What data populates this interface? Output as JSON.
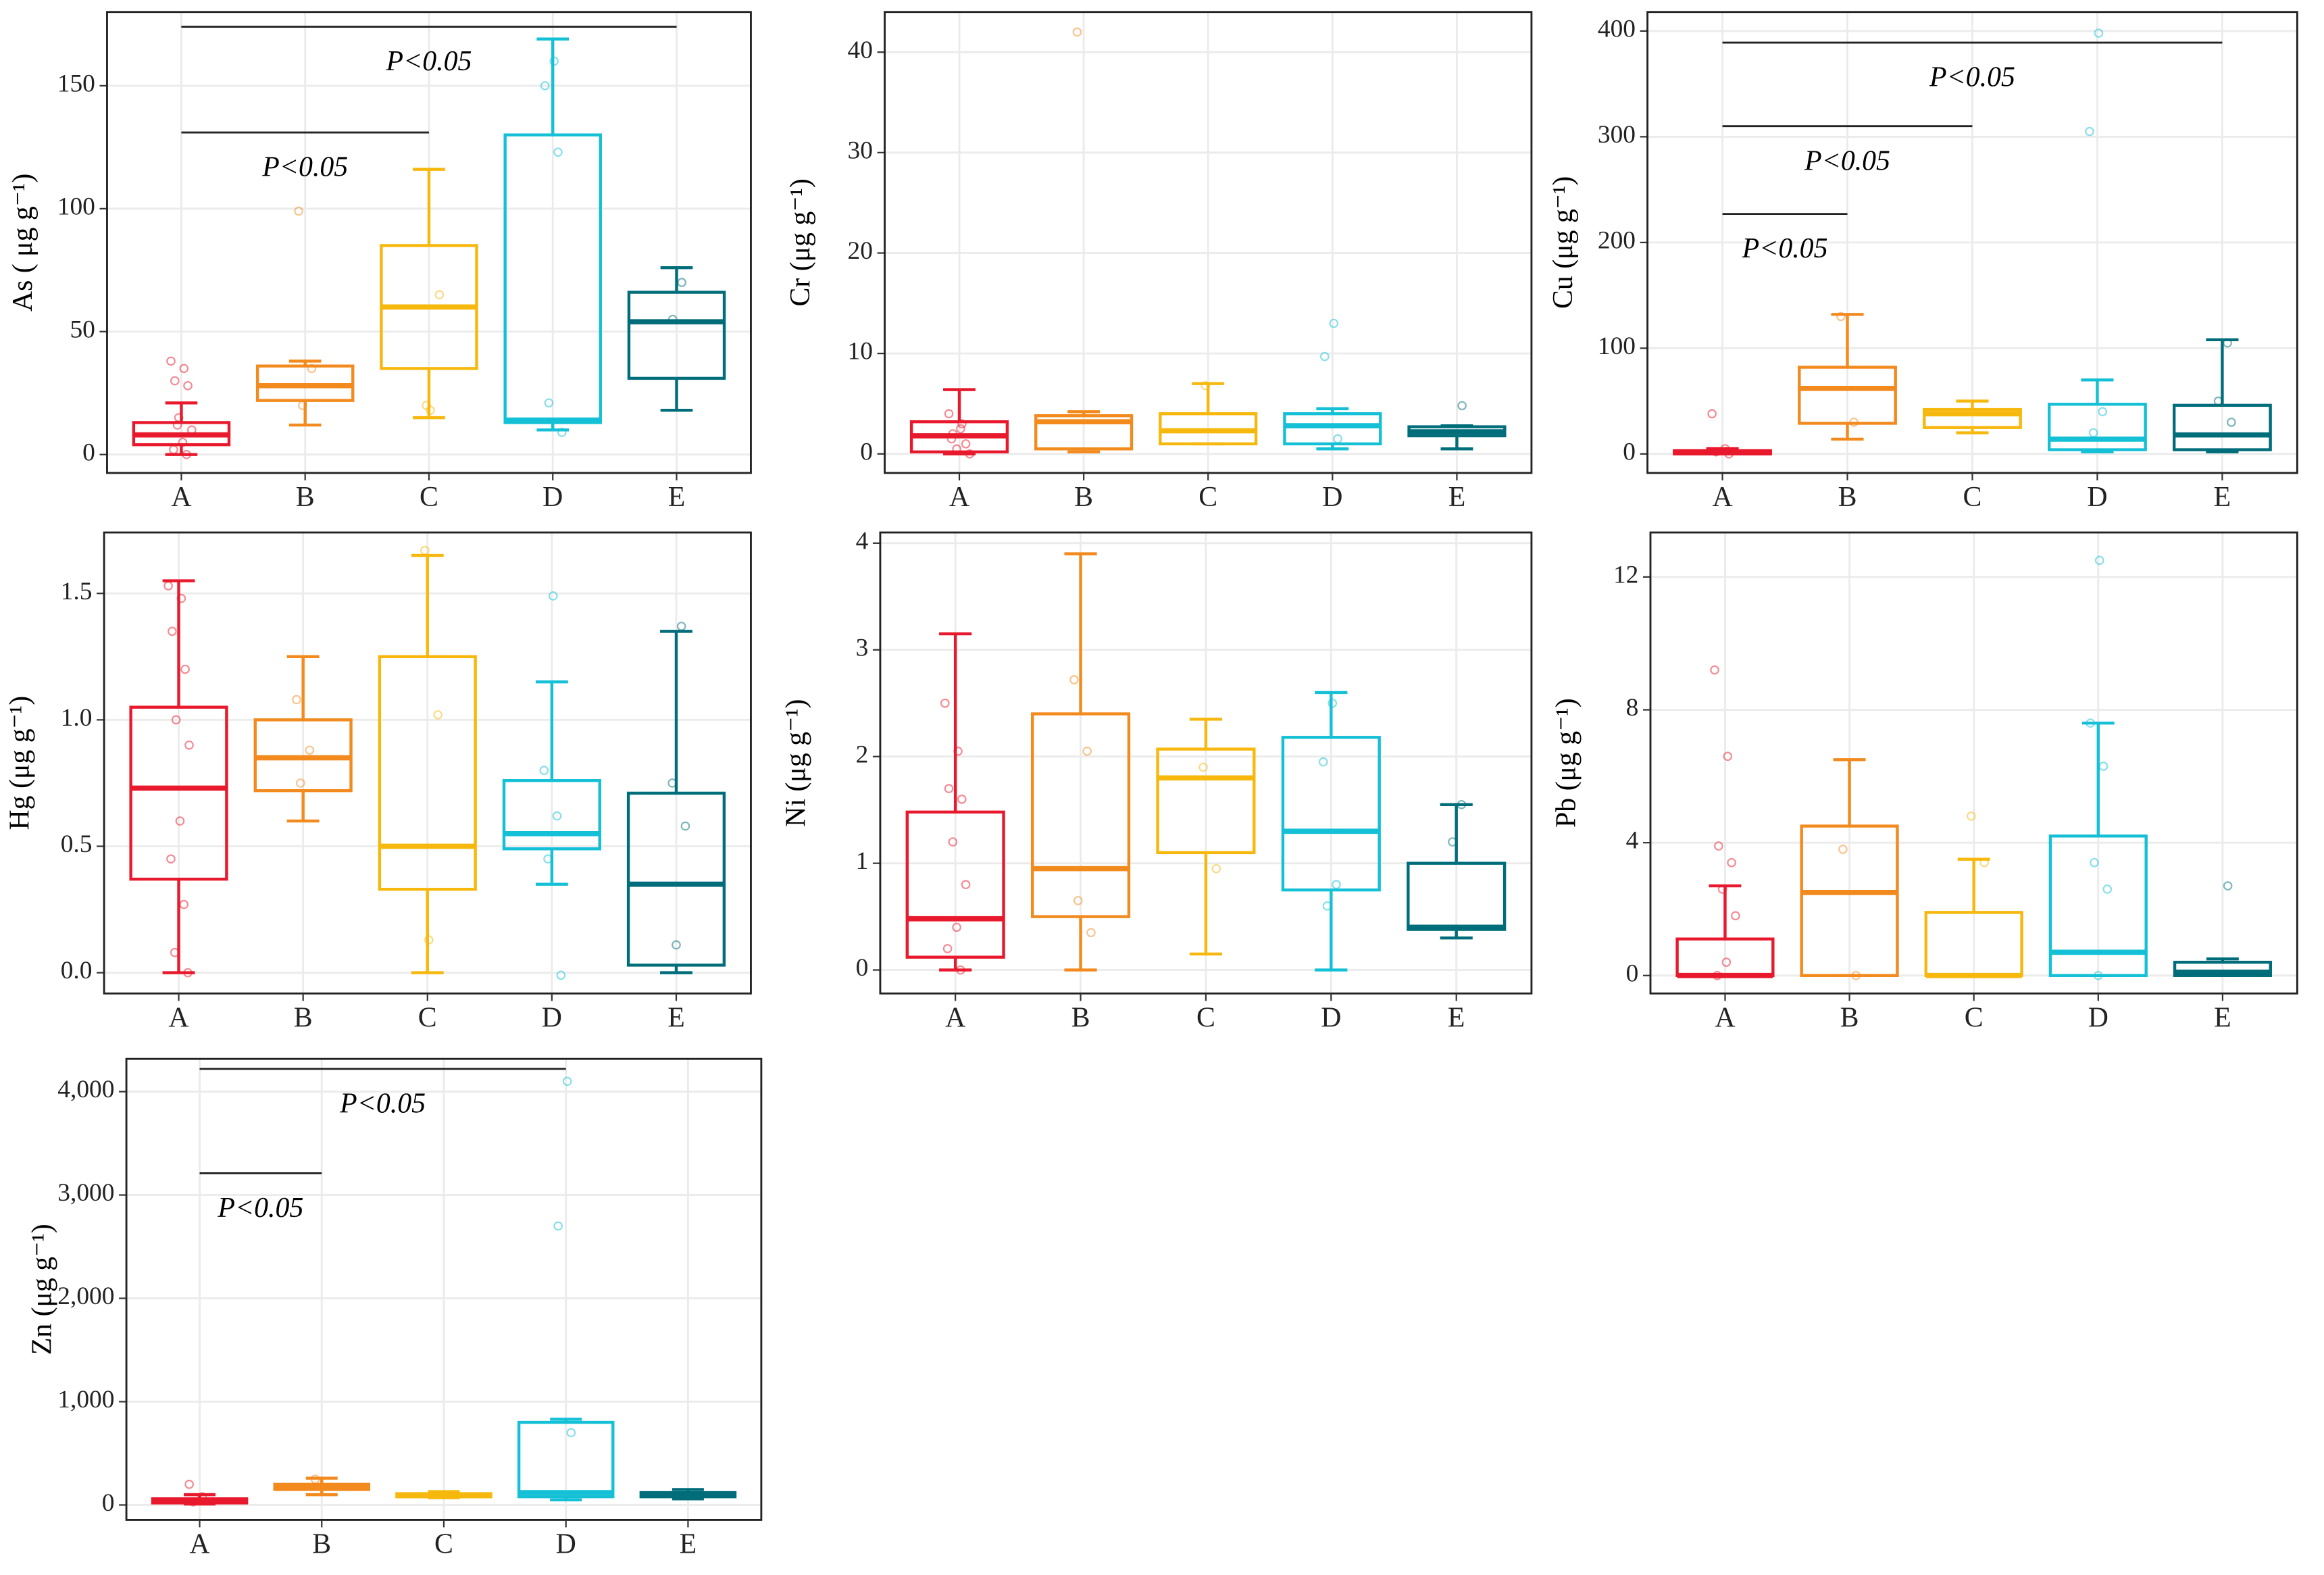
{
  "chart_data": [
    {
      "type": "box",
      "y_label": "As ( μg g⁻¹)",
      "categories": [
        "A",
        "B",
        "C",
        "D",
        "E"
      ],
      "colors": [
        "#e8192c",
        "#f28a1e",
        "#f7b80d",
        "#14c0d6",
        "#006d7a"
      ],
      "ylim": [
        -7.5,
        180
      ],
      "yticks": [
        0,
        50,
        100,
        150
      ],
      "grid": true,
      "boxes": [
        {
          "low": 0,
          "q1": 4,
          "median": 8,
          "q3": 13,
          "high": 21,
          "points": [
            38,
            35,
            30,
            28,
            15,
            10,
            5,
            2,
            0,
            12
          ]
        },
        {
          "low": 12,
          "q1": 22,
          "median": 28,
          "q3": 36,
          "high": 38,
          "points": [
            99,
            35,
            20
          ]
        },
        {
          "low": 15,
          "q1": 35,
          "median": 60,
          "q3": 85,
          "high": 116,
          "points": [
            20,
            65,
            18
          ]
        },
        {
          "low": 10,
          "q1": 13,
          "median": 14,
          "q3": 130,
          "high": 169,
          "points": [
            160,
            150,
            123,
            21,
            9
          ]
        },
        {
          "low": 18,
          "q1": 31,
          "median": 54,
          "q3": 66,
          "high": 76,
          "points": [
            70,
            55
          ]
        }
      ],
      "annotations": [
        {
          "label": "P<0.05",
          "from": "A",
          "to": "E",
          "y": 174
        },
        {
          "label": "P<0.05",
          "from": "A",
          "to": "C",
          "y": 131
        }
      ]
    },
    {
      "type": "box",
      "y_label": "Cr (μg g⁻¹)",
      "categories": [
        "A",
        "B",
        "C",
        "D",
        "E"
      ],
      "colors": [
        "#e8192c",
        "#f28a1e",
        "#f7b80d",
        "#14c0d6",
        "#006d7a"
      ],
      "ylim": [
        -1.9,
        44
      ],
      "yticks": [
        0,
        10,
        20,
        30,
        40
      ],
      "grid": true,
      "boxes": [
        {
          "low": 0,
          "q1": 0.2,
          "median": 1.8,
          "q3": 3.2,
          "high": 6.4,
          "points": [
            4,
            3,
            2,
            1,
            0.5,
            0,
            2.5,
            1.5
          ]
        },
        {
          "low": 0.2,
          "q1": 0.5,
          "median": 3.2,
          "q3": 3.8,
          "high": 4.2,
          "points": [
            42
          ]
        },
        {
          "low": 1,
          "q1": 1,
          "median": 2.3,
          "q3": 4,
          "high": 7,
          "points": [
            6.8
          ]
        },
        {
          "low": 0.5,
          "q1": 1,
          "median": 2.8,
          "q3": 4,
          "high": 4.5,
          "points": [
            13,
            9.7,
            1.5
          ]
        },
        {
          "low": 0.5,
          "q1": 1.8,
          "median": 2.2,
          "q3": 2.7,
          "high": 2.8,
          "points": [
            4.8
          ]
        }
      ],
      "annotations": []
    },
    {
      "type": "box",
      "y_label": "Cu (μg g⁻¹)",
      "categories": [
        "A",
        "B",
        "C",
        "D",
        "E"
      ],
      "colors": [
        "#e8192c",
        "#f28a1e",
        "#f7b80d",
        "#14c0d6",
        "#006d7a"
      ],
      "ylim": [
        -18,
        418
      ],
      "yticks": [
        0,
        100,
        200,
        300,
        400
      ],
      "grid": true,
      "boxes": [
        {
          "low": 0,
          "q1": 0,
          "median": 2,
          "q3": 3,
          "high": 5,
          "points": [
            38,
            5,
            2,
            0
          ]
        },
        {
          "low": 14,
          "q1": 29,
          "median": 62,
          "q3": 82,
          "high": 132,
          "points": [
            130,
            30
          ]
        },
        {
          "low": 20,
          "q1": 25,
          "median": 38,
          "q3": 42,
          "high": 50,
          "points": []
        },
        {
          "low": 2,
          "q1": 4,
          "median": 14,
          "q3": 47,
          "high": 70,
          "points": [
            398,
            305,
            40,
            20
          ]
        },
        {
          "low": 2,
          "q1": 4,
          "median": 18,
          "q3": 46,
          "high": 108,
          "points": [
            105,
            50,
            30
          ]
        }
      ],
      "annotations": [
        {
          "label": "P<0.05",
          "from": "A",
          "to": "E",
          "y": 389
        },
        {
          "label": "P<0.05",
          "from": "A",
          "to": "C",
          "y": 310
        },
        {
          "label": "P<0.05",
          "from": "A",
          "to": "B",
          "y": 227
        }
      ]
    },
    {
      "type": "box",
      "y_label": "Hg (μg g⁻¹)",
      "categories": [
        "A",
        "B",
        "C",
        "D",
        "E"
      ],
      "colors": [
        "#e8192c",
        "#f28a1e",
        "#f7b80d",
        "#14c0d6",
        "#006d7a"
      ],
      "ylim": [
        -0.082,
        1.741
      ],
      "yticks": [
        {
          "value": 0,
          "label": "0.0"
        },
        0.5,
        {
          "value": 1,
          "label": "1.0"
        },
        1.5
      ],
      "grid": true,
      "boxes": [
        {
          "low": 0,
          "q1": 0.37,
          "median": 0.73,
          "q3": 1.05,
          "high": 1.55,
          "points": [
            1.53,
            1.48,
            1.35,
            1.2,
            1.0,
            0.9,
            0.6,
            0.45,
            0.27,
            0.08,
            0
          ]
        },
        {
          "low": 0.6,
          "q1": 0.72,
          "median": 0.85,
          "q3": 1.0,
          "high": 1.25,
          "points": [
            1.08,
            0.88,
            0.75
          ]
        },
        {
          "low": 0,
          "q1": 0.33,
          "median": 0.5,
          "q3": 1.25,
          "high": 1.65,
          "points": [
            1.67,
            1.02,
            0.13
          ]
        },
        {
          "low": 0.35,
          "q1": 0.49,
          "median": 0.55,
          "q3": 0.76,
          "high": 1.15,
          "points": [
            1.49,
            0.8,
            0.62,
            0.45,
            -0.01
          ]
        },
        {
          "low": 0,
          "q1": 0.03,
          "median": 0.35,
          "q3": 0.71,
          "high": 1.35,
          "points": [
            1.37,
            0.75,
            0.58,
            0.11
          ]
        }
      ],
      "annotations": []
    },
    {
      "type": "box",
      "y_label": "Ni (μg g⁻¹)",
      "categories": [
        "A",
        "B",
        "C",
        "D",
        "E"
      ],
      "colors": [
        "#e8192c",
        "#f28a1e",
        "#f7b80d",
        "#14c0d6",
        "#006d7a"
      ],
      "ylim": [
        -0.22,
        4.1
      ],
      "yticks": [
        0,
        1,
        2,
        3,
        4
      ],
      "grid": true,
      "boxes": [
        {
          "low": 0,
          "q1": 0.12,
          "median": 0.48,
          "q3": 1.48,
          "high": 3.15,
          "points": [
            2.5,
            2.05,
            1.7,
            1.6,
            1.2,
            0.8,
            0.4,
            0.2,
            0
          ]
        },
        {
          "low": 0,
          "q1": 0.5,
          "median": 0.95,
          "q3": 2.4,
          "high": 3.9,
          "points": [
            2.72,
            2.05,
            0.65,
            0.35
          ]
        },
        {
          "low": 0.15,
          "q1": 1.1,
          "median": 1.8,
          "q3": 2.07,
          "high": 2.35,
          "points": [
            1.9,
            0.95
          ]
        },
        {
          "low": 0,
          "q1": 0.75,
          "median": 1.3,
          "q3": 2.18,
          "high": 2.6,
          "points": [
            2.5,
            1.95,
            0.8,
            0.6
          ]
        },
        {
          "low": 0.3,
          "q1": 0.38,
          "median": 0.4,
          "q3": 1.0,
          "high": 1.55,
          "points": [
            1.55,
            1.2
          ]
        }
      ],
      "annotations": []
    },
    {
      "type": "box",
      "y_label": "Pb (μg g⁻¹)",
      "categories": [
        "A",
        "B",
        "C",
        "D",
        "E"
      ],
      "colors": [
        "#e8192c",
        "#f28a1e",
        "#f7b80d",
        "#14c0d6",
        "#006d7a"
      ],
      "ylim": [
        -0.54,
        13.34
      ],
      "yticks": [
        0,
        4,
        8,
        12
      ],
      "grid": true,
      "boxes": [
        {
          "low": 0,
          "q1": 0,
          "median": 0,
          "q3": 1.1,
          "high": 2.7,
          "points": [
            9.2,
            6.6,
            3.9,
            3.4,
            2.6,
            1.8,
            0.4,
            0
          ]
        },
        {
          "low": 0,
          "q1": 0,
          "median": 2.5,
          "q3": 4.5,
          "high": 6.5,
          "points": [
            3.8,
            0
          ]
        },
        {
          "low": 0,
          "q1": 0,
          "median": 0,
          "q3": 1.9,
          "high": 3.5,
          "points": [
            4.8,
            3.4
          ]
        },
        {
          "low": 0,
          "q1": 0,
          "median": 0.7,
          "q3": 4.2,
          "high": 7.6,
          "points": [
            12.5,
            7.6,
            6.3,
            3.4,
            2.6,
            0
          ]
        },
        {
          "low": 0,
          "q1": 0,
          "median": 0.1,
          "q3": 0.4,
          "high": 0.5,
          "points": [
            2.7
          ]
        }
      ],
      "annotations": []
    },
    {
      "type": "box",
      "y_label": "Zn (μg g⁻¹)",
      "categories": [
        "A",
        "B",
        "C",
        "D",
        "E"
      ],
      "colors": [
        "#e8192c",
        "#f28a1e",
        "#f7b80d",
        "#14c0d6",
        "#006d7a"
      ],
      "ylim": [
        -144,
        4317
      ],
      "yticks": [
        0,
        {
          "value": 1000,
          "label": "1,000"
        },
        {
          "value": 2000,
          "label": "2,000"
        },
        {
          "value": 3000,
          "label": "3,000"
        },
        {
          "value": 4000,
          "label": "4,000"
        }
      ],
      "grid": true,
      "boxes": [
        {
          "low": 10,
          "q1": 20,
          "median": 40,
          "q3": 60,
          "high": 100,
          "points": [
            200,
            80,
            30
          ]
        },
        {
          "low": 100,
          "q1": 150,
          "median": 180,
          "q3": 200,
          "high": 260,
          "points": [
            250
          ]
        },
        {
          "low": 70,
          "q1": 80,
          "median": 90,
          "q3": 110,
          "high": 130,
          "points": []
        },
        {
          "low": 50,
          "q1": 80,
          "median": 120,
          "q3": 800,
          "high": 830,
          "points": [
            4100,
            2700,
            700
          ]
        },
        {
          "low": 60,
          "q1": 80,
          "median": 100,
          "q3": 120,
          "high": 150,
          "points": []
        }
      ],
      "annotations": [
        {
          "label": "P<0.05",
          "from": "A",
          "to": "D",
          "y": 4220
        },
        {
          "label": "P<0.05",
          "from": "A",
          "to": "B",
          "y": 3210
        }
      ]
    }
  ]
}
